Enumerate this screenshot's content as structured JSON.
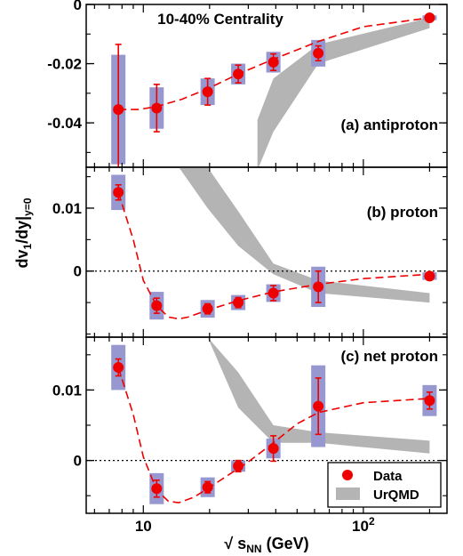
{
  "chart_data": {
    "type": "scatter",
    "title": "10-40% Centrality",
    "xlabel": {
      "prefix": "√ s",
      "sub": "NN",
      "suffix": " (GeV)"
    },
    "ylabel": {
      "prefix": "dv",
      "sub1": "1",
      "mid": "/dy|",
      "sub2": "y=0"
    },
    "xscale": "log",
    "xlim": [
      5.5,
      240
    ],
    "x_tick_labels": [
      "10",
      "10"
    ],
    "x_tick_label_sup": [
      "",
      "2"
    ],
    "legend": {
      "position": "bottom-right",
      "entries": [
        {
          "label": "Data",
          "marker": "red-circle"
        },
        {
          "label": "UrQMD",
          "marker": "gray-band"
        }
      ]
    },
    "colors": {
      "data": "#ee0000",
      "sys_box": "#9898d0",
      "urqmd": "#b4b4b4"
    },
    "panels": [
      {
        "label": "(a) antiproton",
        "ylim": [
          -0.055,
          0.0
        ],
        "y_ticks": [
          0.0,
          -0.02,
          -0.04
        ],
        "y_tick_labels": [
          "0",
          "-0.02",
          "-0.04"
        ],
        "zero_line": false,
        "x": [
          7.7,
          11.5,
          19.6,
          27,
          39,
          62.4,
          200
        ],
        "y": [
          -0.0355,
          -0.035,
          -0.0295,
          -0.0235,
          -0.0195,
          -0.0165,
          -0.0045
        ],
        "stat_err": [
          0.022,
          0.008,
          0.0045,
          0.003,
          0.0028,
          0.0025,
          0.0008
        ],
        "sys_err": [
          0.0185,
          0.007,
          0.0045,
          0.0035,
          0.0035,
          0.0045,
          0.0008
        ],
        "fit_x": [
          7.7,
          9.5,
          11.5,
          15,
          19.6,
          27,
          39,
          62.4,
          100,
          200
        ],
        "fit_y": [
          -0.0355,
          -0.0355,
          -0.0345,
          -0.032,
          -0.0285,
          -0.0235,
          -0.0185,
          -0.0125,
          -0.0075,
          -0.0045
        ],
        "urqmd_x": [
          33,
          39,
          62.4,
          200
        ],
        "urqmd_low": [
          -0.056,
          -0.043,
          -0.02,
          -0.008
        ],
        "urqmd_high": [
          -0.039,
          -0.025,
          -0.0135,
          -0.0045
        ]
      },
      {
        "label": "(b) proton",
        "ylim": [
          -0.0105,
          0.0165
        ],
        "y_ticks": [
          0.01,
          0.0
        ],
        "y_tick_labels": [
          "0.01",
          "0"
        ],
        "zero_line": true,
        "x": [
          7.7,
          11.5,
          19.6,
          27,
          39,
          62.4,
          200
        ],
        "y": [
          0.0125,
          -0.0055,
          -0.006,
          -0.005,
          -0.0035,
          -0.0025,
          -0.0008
        ],
        "stat_err": [
          0.0012,
          0.0012,
          0.0008,
          0.0008,
          0.0012,
          0.0025,
          0.0006
        ],
        "sys_err": [
          0.0028,
          0.0022,
          0.0014,
          0.0012,
          0.0014,
          0.0032,
          0.0006
        ],
        "fit_x": [
          7.7,
          9,
          10,
          11.5,
          13,
          14.5,
          16,
          19.6,
          27,
          39,
          62.4,
          100,
          200
        ],
        "fit_y": [
          0.0125,
          0.005,
          -0.0015,
          -0.0055,
          -0.0073,
          -0.0076,
          -0.0073,
          -0.0062,
          -0.0047,
          -0.0033,
          -0.0021,
          -0.0012,
          -0.0005
        ],
        "urqmd_x": [
          14.5,
          19.6,
          27,
          39,
          62.4,
          200
        ],
        "urqmd_low": [
          0.0165,
          0.01,
          0.004,
          -0.0005,
          -0.0035,
          -0.005
        ],
        "urqmd_high": [
          0.0165,
          0.0165,
          0.0095,
          0.0012,
          -0.0015,
          -0.0035
        ]
      },
      {
        "label": "(c) net proton",
        "ylim": [
          -0.0075,
          0.0175
        ],
        "y_ticks": [
          0.01,
          0.0
        ],
        "y_tick_labels": [
          "0.01",
          "0"
        ],
        "zero_line": true,
        "x": [
          7.7,
          11.5,
          19.6,
          27,
          39,
          62.4,
          200
        ],
        "y": [
          0.0132,
          -0.004,
          -0.0038,
          -0.0008,
          0.0017,
          0.0077,
          0.0085
        ],
        "stat_err": [
          0.0012,
          0.0012,
          0.0008,
          0.0008,
          0.0018,
          0.004,
          0.0012
        ],
        "sys_err": [
          0.0032,
          0.0022,
          0.0014,
          0.0008,
          0.0014,
          0.0058,
          0.0022
        ],
        "fit_x": [
          7.7,
          9,
          10,
          11.5,
          13,
          14.5,
          17,
          19.6,
          24,
          30,
          39,
          50,
          62.4,
          100,
          200
        ],
        "fit_y": [
          0.0132,
          0.0065,
          0.0005,
          -0.0042,
          -0.0058,
          -0.006,
          -0.0052,
          -0.004,
          -0.0022,
          -0.0002,
          0.0025,
          0.0052,
          0.0068,
          0.0082,
          0.0088
        ],
        "urqmd_x": [
          19.6,
          27,
          39,
          62.4,
          200
        ],
        "urqmd_low": [
          0.0175,
          0.0075,
          0.0025,
          0.0025,
          0.001
        ],
        "urqmd_high": [
          0.0175,
          0.0125,
          0.005,
          0.004,
          0.0028
        ]
      }
    ]
  }
}
